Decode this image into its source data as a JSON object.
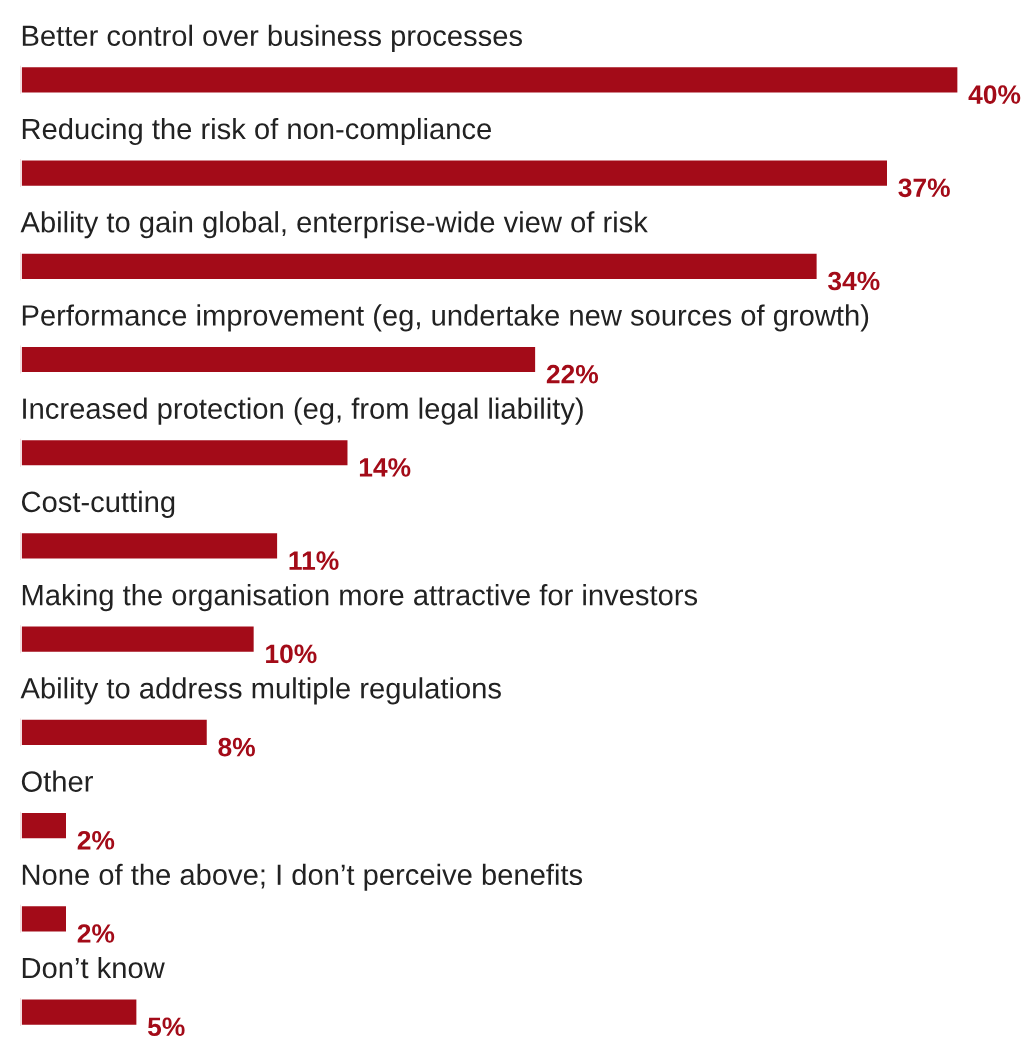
{
  "chart_data": {
    "type": "bar",
    "orientation": "horizontal",
    "categories": [
      "Better control over business processes",
      "Reducing the risk of non-compliance",
      "Ability to gain global, enterprise-wide view of risk",
      "Performance improvement (eg, undertake new sources of growth)",
      "Increased protection (eg, from legal liability)",
      "Cost-cutting",
      "Making the organisation more attractive for investors",
      "Ability to address multiple regulations",
      "Other",
      "None of the above; I don’t perceive benefits",
      "Don’t know"
    ],
    "values": [
      40,
      37,
      34,
      22,
      14,
      11,
      10,
      8,
      2,
      2,
      5
    ],
    "value_labels": [
      "40%",
      "37%",
      "34%",
      "22%",
      "14%",
      "11%",
      "10%",
      "8%",
      "2%",
      "2%",
      "5%"
    ],
    "color": "#a30b18"
  }
}
